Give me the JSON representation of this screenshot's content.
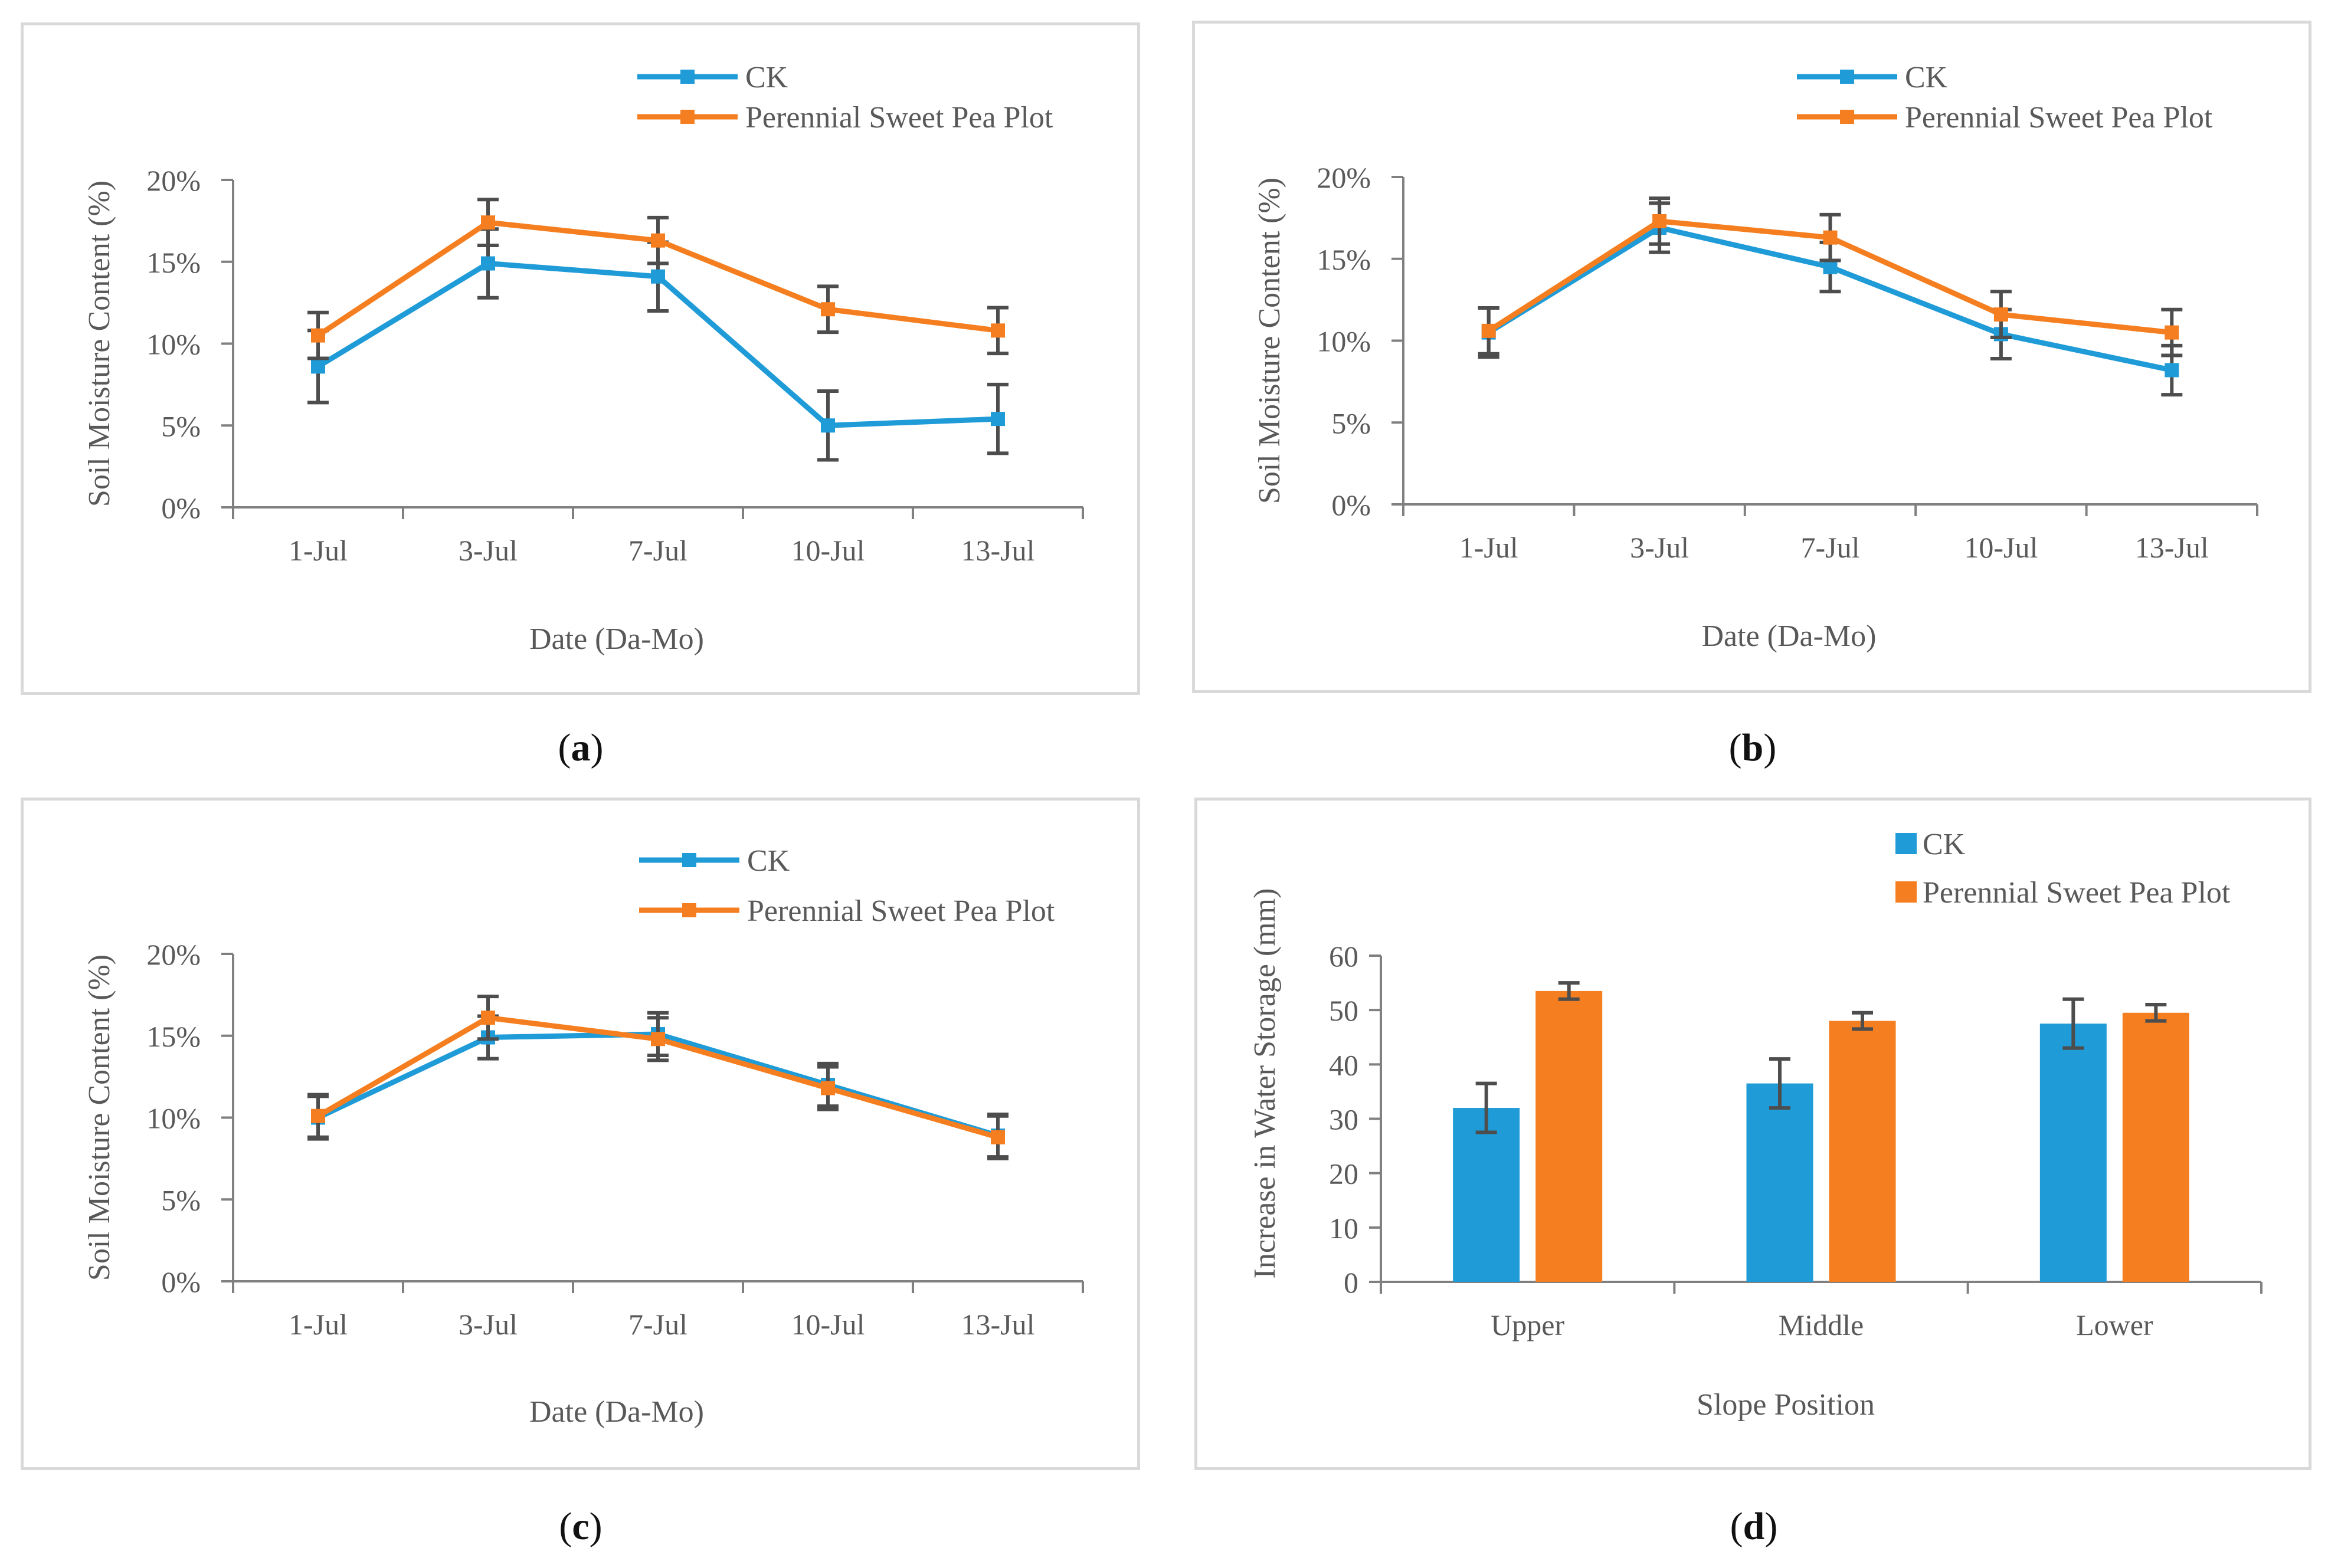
{
  "colors": {
    "ck": "#1f9bd7",
    "psp": "#f57f20",
    "axis": "#808080",
    "error": "#4d4d4d",
    "text": "#595959",
    "border": "#d9d9d9"
  },
  "chart_data": [
    {
      "id": "a",
      "type": "line",
      "caption_letter": "a",
      "categories": [
        "1-Jul",
        "3-Jul",
        "7-Jul",
        "10-Jul",
        "13-Jul"
      ],
      "ylim": [
        0,
        0.2
      ],
      "yticks": [
        "0%",
        "5%",
        "10%",
        "15%",
        "20%"
      ],
      "xlabel": "Date (Da-Mo)",
      "ylabel": "Soil Moisture Content (%)",
      "legend": "top-right",
      "series": [
        {
          "name": "CK",
          "values": [
            0.086,
            0.149,
            0.141,
            0.05,
            0.054
          ],
          "errors": [
            0.022,
            0.021,
            0.021,
            0.021,
            0.021
          ]
        },
        {
          "name": "Perennial Sweet Pea Plot",
          "values": [
            0.105,
            0.174,
            0.163,
            0.121,
            0.108
          ],
          "errors": [
            0.014,
            0.014,
            0.014,
            0.014,
            0.014
          ]
        }
      ]
    },
    {
      "id": "b",
      "type": "line",
      "caption_letter": "b",
      "categories": [
        "1-Jul",
        "3-Jul",
        "7-Jul",
        "10-Jul",
        "13-Jul"
      ],
      "ylim": [
        0,
        0.2
      ],
      "yticks": [
        "0%",
        "5%",
        "10%",
        "15%",
        "20%"
      ],
      "xlabel": "Date (Da-Mo)",
      "ylabel": "Soil Moisture Content (%)",
      "legend": "top-right",
      "series": [
        {
          "name": "CK",
          "values": [
            0.105,
            0.169,
            0.145,
            0.104,
            0.082
          ],
          "errors": [
            0.015,
            0.015,
            0.015,
            0.015,
            0.015
          ]
        },
        {
          "name": "Perennial Sweet Pea Plot",
          "values": [
            0.106,
            0.173,
            0.163,
            0.116,
            0.105
          ],
          "errors": [
            0.014,
            0.014,
            0.014,
            0.014,
            0.014
          ]
        }
      ]
    },
    {
      "id": "c",
      "type": "line",
      "caption_letter": "c",
      "categories": [
        "1-Jul",
        "3-Jul",
        "7-Jul",
        "10-Jul",
        "13-Jul"
      ],
      "ylim": [
        0,
        0.2
      ],
      "yticks": [
        "0%",
        "5%",
        "10%",
        "15%",
        "20%"
      ],
      "xlabel": "Date (Da-Mo)",
      "ylabel": "Soil Moisture Content (%)",
      "legend": "top-right",
      "series": [
        {
          "name": "CK",
          "values": [
            0.1,
            0.149,
            0.151,
            0.12,
            0.089
          ],
          "errors": [
            0.013,
            0.013,
            0.013,
            0.013,
            0.013
          ]
        },
        {
          "name": "Perennial Sweet Pea Plot",
          "values": [
            0.101,
            0.161,
            0.148,
            0.118,
            0.088
          ],
          "errors": [
            0.013,
            0.013,
            0.013,
            0.013,
            0.013
          ]
        }
      ]
    },
    {
      "id": "d",
      "type": "bar",
      "caption_letter": "d",
      "categories": [
        "Upper",
        "Middle",
        "Lower"
      ],
      "ylim": [
        0,
        60
      ],
      "yticks": [
        "0",
        "10",
        "20",
        "30",
        "40",
        "50",
        "60"
      ],
      "xlabel": "Slope Position",
      "ylabel": "Increase in Water Storage (mm)",
      "legend": "top-right",
      "series": [
        {
          "name": "CK",
          "values": [
            32,
            36.5,
            47.5
          ],
          "errors": [
            4.5,
            4.5,
            4.5
          ]
        },
        {
          "name": "Perennial Sweet Pea Plot",
          "values": [
            53.5,
            48,
            49.5
          ],
          "errors": [
            1.5,
            1.5,
            1.5
          ]
        }
      ]
    }
  ]
}
